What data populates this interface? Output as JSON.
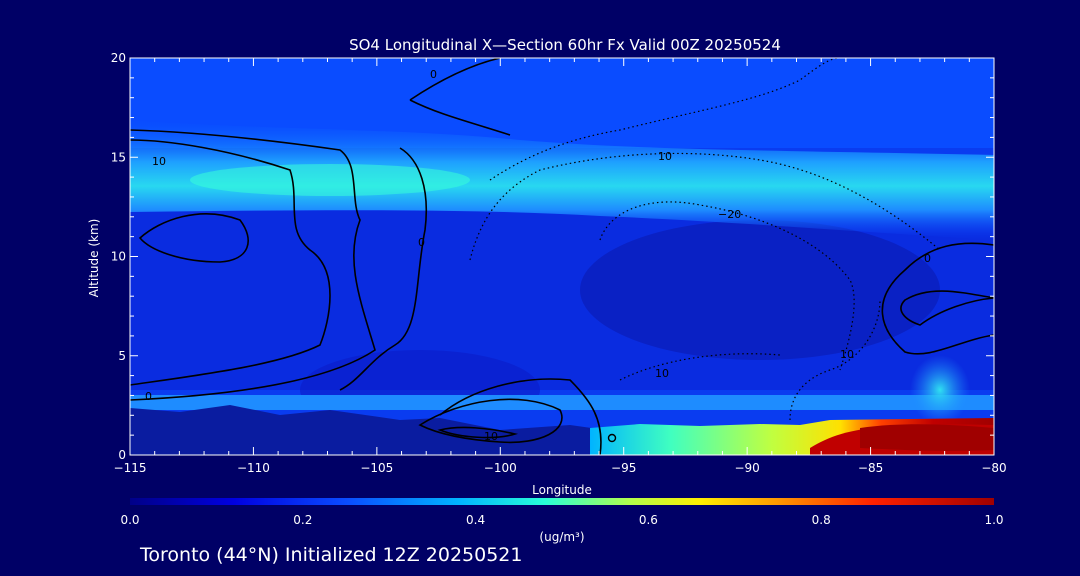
{
  "chart_data": {
    "type": "heatmap",
    "title": "SO4 Longitudinal X—Section 60hr  Fx Valid 00Z 20250524",
    "xlabel": "Longitude",
    "ylabel": "Altitude (km)",
    "xlim": [
      -115,
      -80
    ],
    "ylim": [
      0,
      20
    ],
    "x_ticks": [
      -115,
      -110,
      -105,
      -100,
      -95,
      -90,
      -85,
      -80
    ],
    "y_ticks": [
      0,
      5,
      10,
      15,
      20
    ],
    "x_tick_labels": [
      "−115",
      "−110",
      "−105",
      "−100",
      "−95",
      "−90",
      "−85",
      "−80"
    ],
    "y_tick_labels": [
      "0",
      "5",
      "10",
      "15",
      "20"
    ],
    "colorbar": {
      "min": 0.0,
      "max": 1.0,
      "ticks": [
        0.0,
        0.2,
        0.4,
        0.6,
        0.8,
        1.0
      ],
      "tick_labels": [
        "0.0",
        "0.2",
        "0.4",
        "0.6",
        "0.8",
        "1.0"
      ],
      "unit_label": "(ug/m³)",
      "colors": [
        "#000088",
        "#0000e0",
        "#0a4cff",
        "#00b4ff",
        "#28ffd8",
        "#b4ff4a",
        "#ffee00",
        "#ff9800",
        "#ff2000",
        "#a00000"
      ]
    },
    "fields": [
      {
        "name": "upper-layer",
        "lon": [
          -115,
          -80
        ],
        "alt": [
          12.5,
          15
        ],
        "value": 0.35
      },
      {
        "name": "upper-core",
        "lon": [
          -111,
          -102
        ],
        "alt": [
          13.5,
          14.5
        ],
        "value": 0.42
      },
      {
        "name": "surface-central",
        "lon": [
          -96,
          -88
        ],
        "alt": [
          0,
          1.5
        ],
        "value": 0.5
      },
      {
        "name": "surface-east",
        "lon": [
          -88,
          -80
        ],
        "alt": [
          0,
          1.5
        ],
        "value": 0.95
      },
      {
        "name": "background",
        "lon": [
          -115,
          -80
        ],
        "alt": [
          0,
          20
        ],
        "value": 0.1
      }
    ],
    "contour_labels": [
      "10",
      "0",
      "0",
      "10",
      "10",
      "−20",
      "10",
      "0",
      "10",
      "0"
    ],
    "grid": false
  },
  "footer_text": "Toronto (44°N) Initialized 12Z 20250521"
}
